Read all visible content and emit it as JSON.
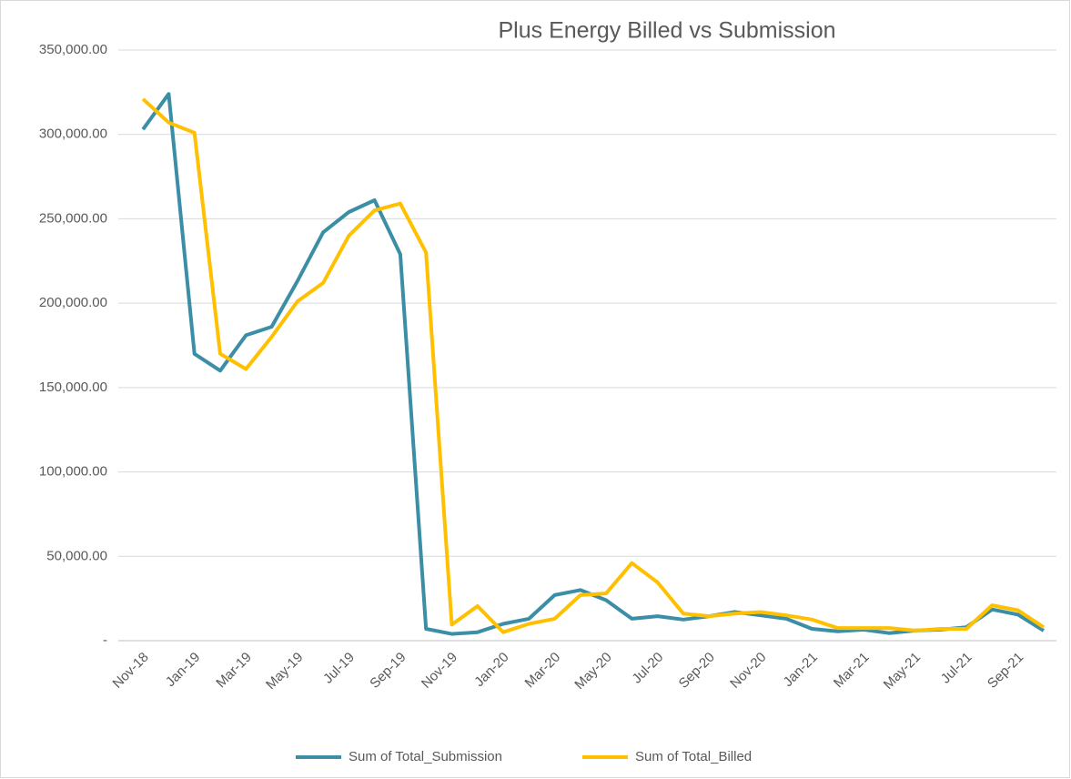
{
  "chart_data": {
    "type": "line",
    "title": "Plus Energy Billed vs Submission",
    "categories": [
      "Nov-18",
      null,
      "Jan-19",
      null,
      "Mar-19",
      null,
      "May-19",
      null,
      "Jul-19",
      null,
      "Sep-19",
      null,
      "Nov-19",
      null,
      "Jan-20",
      null,
      "Mar-20",
      null,
      "May-20",
      null,
      "Jul-20",
      null,
      "Sep-20",
      null,
      "Nov-20",
      null,
      "Jan-21",
      null,
      "Mar-21",
      null,
      "May-21",
      null,
      "Jul-21",
      null,
      "Sep-21",
      null
    ],
    "series": [
      {
        "name": "Sum of Total_Submission",
        "color": "#3b8ea5",
        "values": [
          303000,
          324000,
          170000,
          160000,
          181000,
          186000,
          213000,
          242000,
          254000,
          261000,
          229000,
          7000,
          4000,
          5000,
          10000,
          13000,
          27000,
          30000,
          24000,
          13000,
          14500,
          12500,
          14500,
          17000,
          15000,
          13000,
          7000,
          5500,
          6500,
          4500,
          6000,
          6500,
          8000,
          18500,
          15500,
          6000
        ]
      },
      {
        "name": "Sum of Total_Billed",
        "color": "#ffc000",
        "values": [
          321000,
          307000,
          301000,
          170000,
          161000,
          180000,
          201000,
          212000,
          240000,
          255000,
          259000,
          230000,
          9500,
          20500,
          5000,
          10000,
          13000,
          27000,
          28000,
          46000,
          34500,
          16000,
          14500,
          16000,
          17000,
          15000,
          12500,
          7500,
          7500,
          7500,
          6000,
          7000,
          7000,
          21000,
          18000,
          8000
        ]
      }
    ],
    "ylim": [
      0,
      350000
    ],
    "yticks": [
      {
        "value": 0,
        "label": "-"
      },
      {
        "value": 50000,
        "label": "50,000.00"
      },
      {
        "value": 100000,
        "label": "100,000.00"
      },
      {
        "value": 150000,
        "label": "150,000.00"
      },
      {
        "value": 200000,
        "label": "200,000.00"
      },
      {
        "value": 250000,
        "label": "250,000.00"
      },
      {
        "value": 300000,
        "label": "300,000.00"
      },
      {
        "value": 350000,
        "label": "350,000.00"
      }
    ],
    "grid": true,
    "legend": "bottom"
  }
}
